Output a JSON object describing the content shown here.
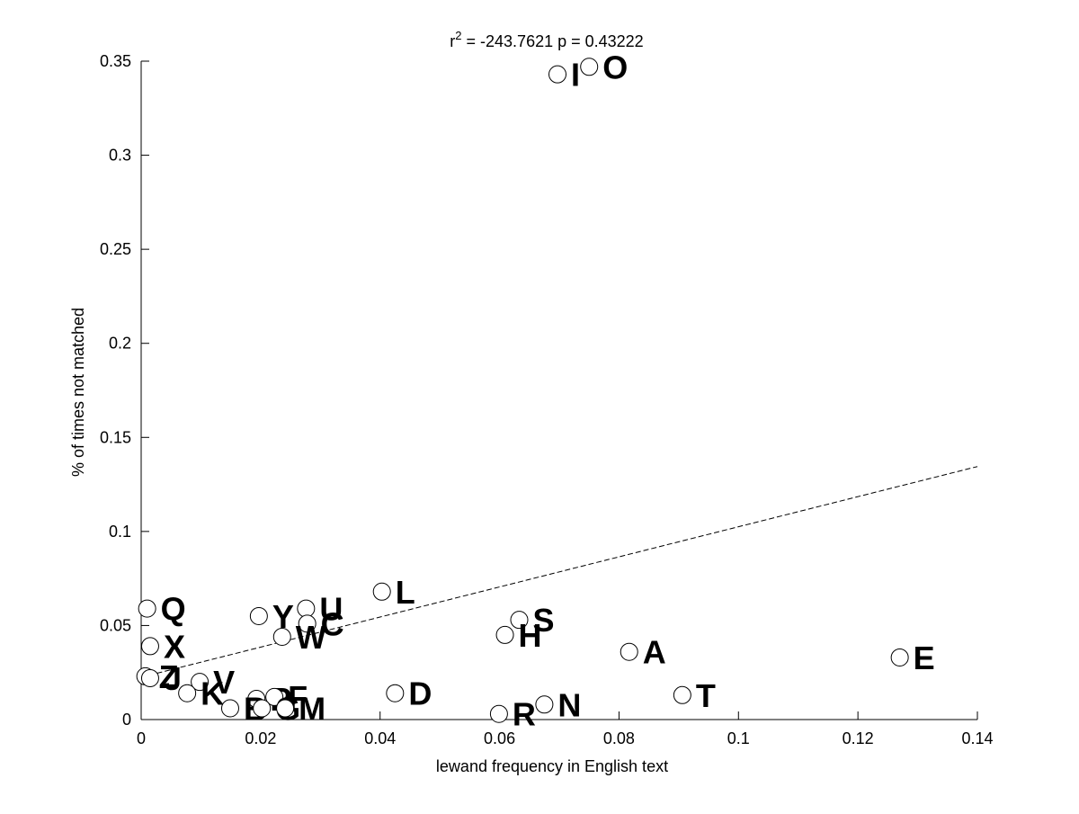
{
  "chart_data": {
    "type": "scatter",
    "title_prefix": "r",
    "title_superscript": "2",
    "title_suffix": " = -243.7621 p = 0.43222",
    "xlabel": "lewand frequency in English text",
    "ylabel": "% of times not matched",
    "xlim": [
      0,
      0.14
    ],
    "ylim": [
      0,
      0.35
    ],
    "x_ticks": [
      0,
      0.02,
      0.04,
      0.06,
      0.08,
      0.1,
      0.12,
      0.14
    ],
    "x_tick_labels": [
      "0",
      "0.02",
      "0.04",
      "0.06",
      "0.08",
      "0.1",
      "0.12",
      "0.14"
    ],
    "y_ticks": [
      0,
      0.05,
      0.1,
      0.15,
      0.2,
      0.25,
      0.3,
      0.35
    ],
    "y_tick_labels": [
      "0",
      "0.05",
      "0.1",
      "0.15",
      "0.2",
      "0.25",
      "0.3",
      "0.35"
    ],
    "grid": false,
    "marker": "open-circle",
    "points": [
      {
        "label": "O",
        "x": 0.075,
        "y": 0.347
      },
      {
        "label": "I",
        "x": 0.0697,
        "y": 0.343
      },
      {
        "label": "L",
        "x": 0.0403,
        "y": 0.068
      },
      {
        "label": "Q",
        "x": 0.001,
        "y": 0.059
      },
      {
        "label": "U",
        "x": 0.0276,
        "y": 0.059
      },
      {
        "label": "Y",
        "x": 0.0197,
        "y": 0.055
      },
      {
        "label": "C",
        "x": 0.0278,
        "y": 0.051
      },
      {
        "label": "S",
        "x": 0.0633,
        "y": 0.053
      },
      {
        "label": "H",
        "x": 0.0609,
        "y": 0.045
      },
      {
        "label": "W",
        "x": 0.0236,
        "y": 0.044
      },
      {
        "label": "X",
        "x": 0.0015,
        "y": 0.039
      },
      {
        "label": "A",
        "x": 0.0817,
        "y": 0.036
      },
      {
        "label": "E",
        "x": 0.127,
        "y": 0.033
      },
      {
        "label": "Z",
        "x": 0.0007,
        "y": 0.023
      },
      {
        "label": "J",
        "x": 0.0015,
        "y": 0.022
      },
      {
        "label": "V",
        "x": 0.0098,
        "y": 0.02
      },
      {
        "label": "K",
        "x": 0.0077,
        "y": 0.014
      },
      {
        "label": "D",
        "x": 0.0425,
        "y": 0.014
      },
      {
        "label": "T",
        "x": 0.0906,
        "y": 0.013
      },
      {
        "label": "P",
        "x": 0.0193,
        "y": 0.011
      },
      {
        "label": "F",
        "x": 0.0223,
        "y": 0.012
      },
      {
        "label": "N",
        "x": 0.0675,
        "y": 0.008
      },
      {
        "label": "B",
        "x": 0.0149,
        "y": 0.006
      },
      {
        "label": "G",
        "x": 0.0202,
        "y": 0.006
      },
      {
        "label": "M",
        "x": 0.0241,
        "y": 0.006
      },
      {
        "label": "R",
        "x": 0.0599,
        "y": 0.003
      }
    ],
    "fit_line": {
      "style": "dashed",
      "x": [
        0,
        0.14
      ],
      "y": [
        0.0225,
        0.1345
      ]
    }
  }
}
